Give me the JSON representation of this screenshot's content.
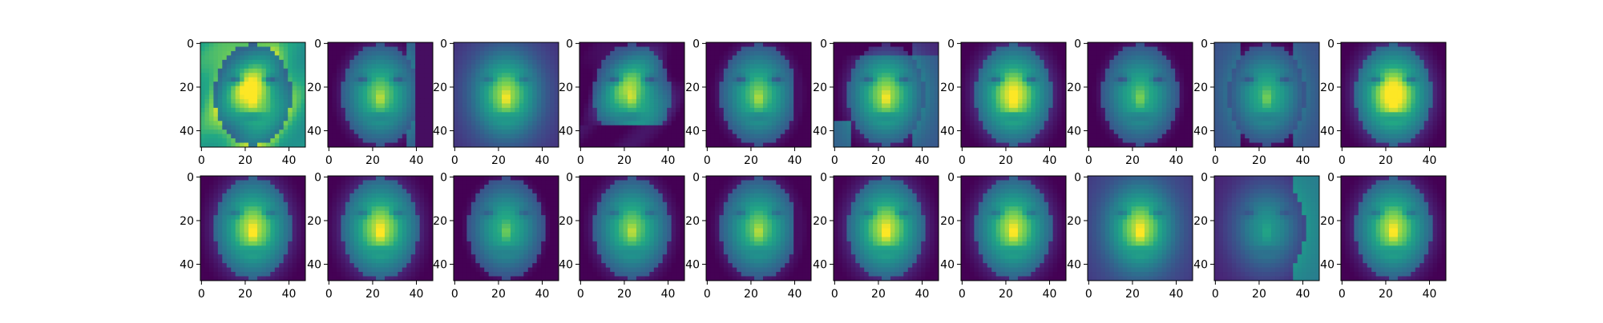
{
  "chart_data": {
    "type": "heatmap",
    "layout": "grid of 2 rows x 10 image subplots",
    "colormap": "viridis",
    "image_size": [
      48,
      48
    ],
    "x_ticks": [
      "0",
      "20",
      "40"
    ],
    "y_ticks": [
      "0",
      "20",
      "40"
    ],
    "x_tick_values": [
      0,
      20,
      40
    ],
    "y_tick_values": [
      0,
      20,
      40
    ],
    "rows": [
      {
        "kind": "original",
        "panels": [
          {
            "mean": 0.66,
            "contrast": 0.95,
            "pose": "tilted",
            "background": "bright",
            "feature_level": 0.55
          },
          {
            "mean": 0.48,
            "contrast": 0.8,
            "pose": "frontal",
            "background": "dark-right-bright",
            "feature_level": 0.45
          },
          {
            "mean": 0.5,
            "contrast": 0.55,
            "pose": "frontal",
            "background": "mid",
            "feature_level": 0.5
          },
          {
            "mean": 0.45,
            "contrast": 0.85,
            "pose": "tilted",
            "background": "dark-bottom",
            "feature_level": 0.5
          },
          {
            "mean": 0.45,
            "contrast": 0.85,
            "pose": "frontal",
            "background": "dark-right",
            "feature_level": 0.45
          },
          {
            "mean": 0.5,
            "contrast": 0.8,
            "pose": "frontal",
            "background": "dark-top-bright-corners",
            "feature_level": 0.5
          },
          {
            "mean": 0.55,
            "contrast": 0.9,
            "pose": "frontal",
            "background": "dark",
            "feature_level": 0.55
          },
          {
            "mean": 0.45,
            "contrast": 0.8,
            "pose": "frontal",
            "background": "dark-sides",
            "feature_level": 0.4
          },
          {
            "mean": 0.42,
            "contrast": 0.7,
            "pose": "frontal",
            "background": "dark-left-bright",
            "feature_level": 0.4
          },
          {
            "mean": 0.55,
            "contrast": 0.85,
            "pose": "frontal",
            "background": "dark",
            "feature_level": 0.6
          }
        ]
      },
      {
        "kind": "reconstruction",
        "panels": [
          {
            "mean": 0.58,
            "contrast": 0.6,
            "pose": "frontal",
            "background": "dark",
            "feature_level": 0.5
          },
          {
            "mean": 0.58,
            "contrast": 0.6,
            "pose": "frontal",
            "background": "dark",
            "feature_level": 0.5
          },
          {
            "mean": 0.4,
            "contrast": 0.5,
            "pose": "frontal",
            "background": "dark",
            "feature_level": 0.4
          },
          {
            "mean": 0.5,
            "contrast": 0.55,
            "pose": "frontal",
            "background": "dark",
            "feature_level": 0.45
          },
          {
            "mean": 0.48,
            "contrast": 0.55,
            "pose": "frontal",
            "background": "dark-right",
            "feature_level": 0.45
          },
          {
            "mean": 0.58,
            "contrast": 0.6,
            "pose": "frontal",
            "background": "dark",
            "feature_level": 0.5
          },
          {
            "mean": 0.56,
            "contrast": 0.6,
            "pose": "frontal",
            "background": "dark",
            "feature_level": 0.5
          },
          {
            "mean": 0.58,
            "contrast": 0.55,
            "pose": "frontal",
            "background": "mid",
            "feature_level": 0.5
          },
          {
            "mean": 0.32,
            "contrast": 0.4,
            "pose": "frontal",
            "background": "mid-bright-right",
            "feature_level": 0.3
          },
          {
            "mean": 0.56,
            "contrast": 0.6,
            "pose": "frontal",
            "background": "dark",
            "feature_level": 0.5
          }
        ]
      }
    ],
    "title": "",
    "xlabel": "",
    "ylabel": "",
    "xlim": [
      0,
      48
    ],
    "ylim": [
      48,
      0
    ],
    "grid": false,
    "legend": "none"
  },
  "colors": {
    "viridis_dark": "#440154",
    "viridis_mid": "#21918c",
    "viridis_light": "#fde725",
    "axis": "#000000",
    "background": "#ffffff"
  }
}
